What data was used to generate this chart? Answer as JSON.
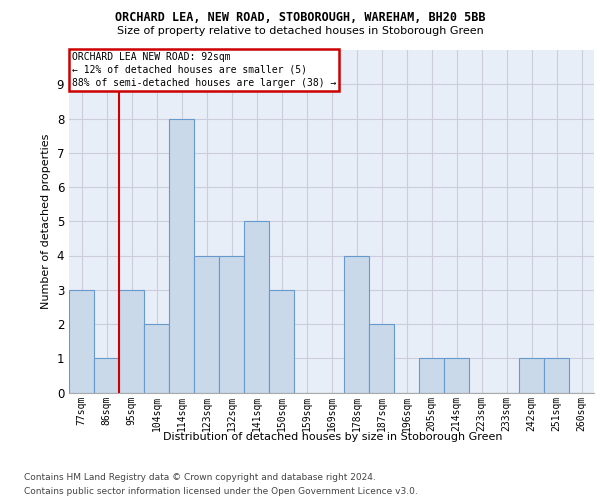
{
  "title1": "ORCHARD LEA, NEW ROAD, STOBOROUGH, WAREHAM, BH20 5BB",
  "title2": "Size of property relative to detached houses in Stoborough Green",
  "xlabel": "Distribution of detached houses by size in Stoborough Green",
  "ylabel": "Number of detached properties",
  "categories": [
    "77sqm",
    "86sqm",
    "95sqm",
    "104sqm",
    "114sqm",
    "123sqm",
    "132sqm",
    "141sqm",
    "150sqm",
    "159sqm",
    "169sqm",
    "178sqm",
    "187sqm",
    "196sqm",
    "205sqm",
    "214sqm",
    "223sqm",
    "233sqm",
    "242sqm",
    "251sqm",
    "260sqm"
  ],
  "values": [
    3,
    1,
    3,
    2,
    8,
    4,
    4,
    5,
    3,
    0,
    0,
    4,
    2,
    0,
    1,
    1,
    0,
    0,
    1,
    1,
    0
  ],
  "bar_color": "#c9d9ea",
  "bar_edge_color": "#6699cc",
  "vline_x": 1.5,
  "annotation_line1": "ORCHARD LEA NEW ROAD: 92sqm",
  "annotation_line2": "← 12% of detached houses are smaller (5)",
  "annotation_line3": "88% of semi-detached houses are larger (38) →",
  "annotation_box_edgecolor": "#cc0000",
  "vline_color": "#cc0000",
  "ylim_max": 10,
  "bg_color": "#e8eef8",
  "grid_color": "#ccccdd",
  "footer1": "Contains HM Land Registry data © Crown copyright and database right 2024.",
  "footer2": "Contains public sector information licensed under the Open Government Licence v3.0."
}
